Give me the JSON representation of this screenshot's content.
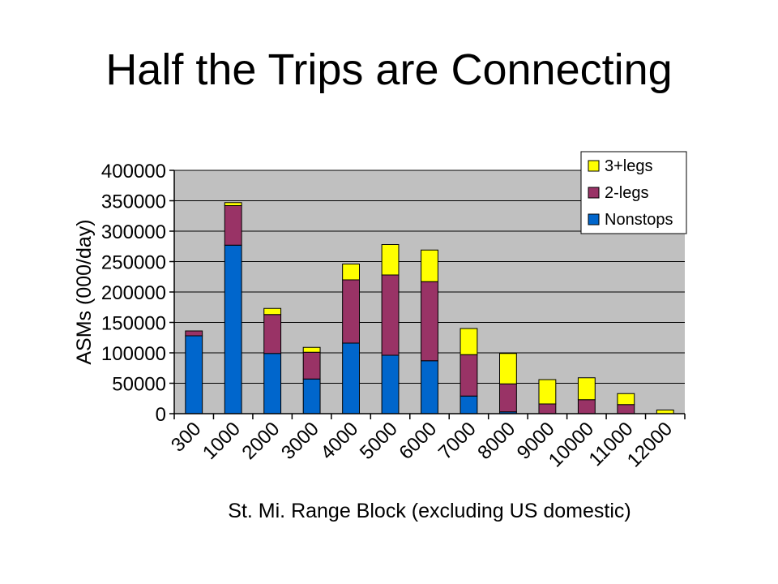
{
  "slide": {
    "title": "Half the Trips are Connecting"
  },
  "chart_data": {
    "type": "bar",
    "stacked": true,
    "categories": [
      "300",
      "1000",
      "2000",
      "3000",
      "4000",
      "5000",
      "6000",
      "7000",
      "8000",
      "9000",
      "10000",
      "11000",
      "12000"
    ],
    "series": [
      {
        "name": "Nonstops",
        "color": "#0066CC",
        "values": [
          128000,
          277000,
          99000,
          57000,
          116000,
          96000,
          87000,
          29000,
          3000,
          0,
          0,
          0,
          0
        ]
      },
      {
        "name": "2-legs",
        "color": "#993366",
        "values": [
          8000,
          65000,
          64000,
          44000,
          104000,
          132000,
          130000,
          68000,
          46000,
          16000,
          23000,
          15000,
          0
        ]
      },
      {
        "name": "3+legs",
        "color": "#FFFF00",
        "values": [
          0,
          5000,
          10000,
          8000,
          26000,
          50000,
          52000,
          43000,
          50000,
          40000,
          36000,
          18000,
          6000
        ]
      }
    ],
    "title": "",
    "xlabel": "St. Mi. Range Block (excluding US domestic)",
    "ylabel": "ASMs (000/day)",
    "ylim": [
      0,
      400000
    ],
    "yticks": [
      0,
      50000,
      100000,
      150000,
      200000,
      250000,
      300000,
      350000,
      400000
    ],
    "plot_background": "#C0C0C0",
    "grid": true,
    "legend": "top-right",
    "legend_order": [
      "3+legs",
      "2-legs",
      "Nonstops"
    ]
  }
}
